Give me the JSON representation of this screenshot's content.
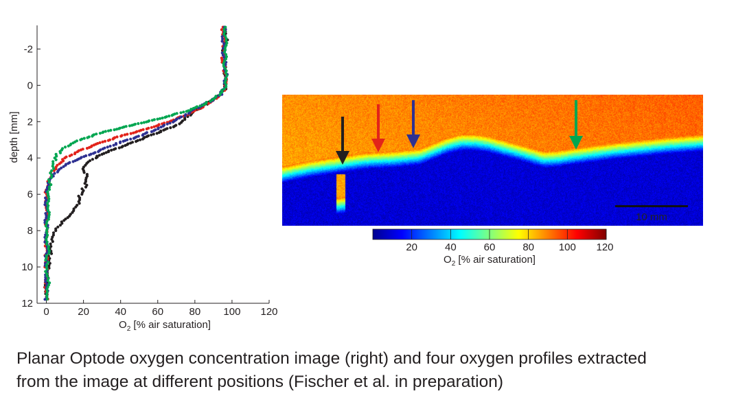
{
  "caption": {
    "line1": "Planar Optode oxygen concentration image (right) and four oxygen profiles extracted",
    "line2": "from the image at different positions (Fischer et al. in preparation)"
  },
  "chart_data": [
    {
      "type": "scatter",
      "xlabel_main": "O",
      "xlabel_sub": "2",
      "xlabel_rest": " [% air saturation]",
      "ylabel": "depth [mm]",
      "xlim": [
        -5,
        120
      ],
      "ylim": [
        -3.3,
        12
      ],
      "y_inverted": true,
      "xticks": [
        0,
        20,
        40,
        60,
        80,
        100,
        120
      ],
      "yticks": [
        -2,
        0,
        2,
        4,
        6,
        8,
        10,
        12
      ],
      "grid": false,
      "series": [
        {
          "color": "#231f20",
          "points": [
            [
              96,
              -3.2
            ],
            [
              97,
              -2.5
            ],
            [
              95,
              -1.8
            ],
            [
              96,
              -1
            ],
            [
              97,
              -0.3
            ],
            [
              96,
              0.2
            ],
            [
              94,
              0.5
            ],
            [
              90,
              0.8
            ],
            [
              85,
              1.1
            ],
            [
              80,
              1.4
            ],
            [
              75,
              1.8
            ],
            [
              70,
              2.2
            ],
            [
              60,
              2.6
            ],
            [
              50,
              3
            ],
            [
              40,
              3.4
            ],
            [
              32,
              3.7
            ],
            [
              26,
              4
            ],
            [
              22,
              4.3
            ],
            [
              20,
              4.6
            ],
            [
              22,
              5
            ],
            [
              22,
              5.3
            ],
            [
              20,
              5.7
            ],
            [
              18,
              6.1
            ],
            [
              17,
              6.5
            ],
            [
              14,
              6.9
            ],
            [
              12,
              7.2
            ],
            [
              8,
              7.6
            ],
            [
              5,
              8
            ],
            [
              3,
              8.6
            ],
            [
              2,
              9.4
            ],
            [
              1,
              10.2
            ],
            [
              0,
              11
            ],
            [
              -1,
              11.6
            ]
          ]
        },
        {
          "color": "#e2231a",
          "points": [
            [
              95,
              -3.2
            ],
            [
              96,
              -2.4
            ],
            [
              95,
              -1.5
            ],
            [
              96,
              -0.8
            ],
            [
              97,
              -0.1
            ],
            [
              95,
              0.4
            ],
            [
              90,
              0.8
            ],
            [
              84,
              1.2
            ],
            [
              76,
              1.6
            ],
            [
              66,
              2
            ],
            [
              54,
              2.4
            ],
            [
              40,
              2.8
            ],
            [
              28,
              3.2
            ],
            [
              18,
              3.6
            ],
            [
              10,
              4
            ],
            [
              6,
              4.4
            ],
            [
              3,
              4.8
            ],
            [
              1,
              5.3
            ],
            [
              0,
              6
            ],
            [
              0,
              7
            ],
            [
              0,
              8.2
            ],
            [
              0,
              9.5
            ],
            [
              0,
              11
            ],
            [
              0,
              11.9
            ]
          ]
        },
        {
          "color": "#2e3192",
          "points": [
            [
              96,
              -3.2
            ],
            [
              95,
              -2.3
            ],
            [
              96,
              -1.4
            ],
            [
              97,
              -0.6
            ],
            [
              96,
              0
            ],
            [
              94,
              0.5
            ],
            [
              88,
              0.9
            ],
            [
              80,
              1.3
            ],
            [
              72,
              1.8
            ],
            [
              62,
              2.3
            ],
            [
              50,
              2.8
            ],
            [
              38,
              3.2
            ],
            [
              26,
              3.7
            ],
            [
              16,
              4.1
            ],
            [
              10,
              4.4
            ],
            [
              6,
              4.7
            ],
            [
              3,
              5
            ],
            [
              1,
              5.5
            ],
            [
              0,
              6.2
            ],
            [
              0,
              7.3
            ],
            [
              0,
              8.5
            ],
            [
              0,
              9.8
            ],
            [
              0,
              11.2
            ],
            [
              0,
              11.9
            ]
          ]
        },
        {
          "color": "#00a651",
          "points": [
            [
              96,
              -3.2
            ],
            [
              97,
              -2.2
            ],
            [
              96,
              -1.2
            ],
            [
              97,
              -0.4
            ],
            [
              96,
              0.2
            ],
            [
              92,
              0.6
            ],
            [
              86,
              1
            ],
            [
              76,
              1.4
            ],
            [
              62,
              1.8
            ],
            [
              46,
              2.2
            ],
            [
              30,
              2.6
            ],
            [
              18,
              3
            ],
            [
              10,
              3.4
            ],
            [
              6,
              3.8
            ],
            [
              4,
              4.2
            ],
            [
              3,
              4.7
            ],
            [
              2,
              5.2
            ],
            [
              1,
              6
            ],
            [
              1,
              7
            ],
            [
              0,
              8
            ],
            [
              1,
              9
            ],
            [
              0,
              10
            ],
            [
              1,
              11
            ],
            [
              0,
              11.9
            ]
          ]
        }
      ]
    },
    {
      "type": "heatmap",
      "colorbar_label_main": "O",
      "colorbar_label_sub": "2",
      "colorbar_label_rest": " [% air saturation]",
      "colorbar_range": [
        0,
        120
      ],
      "colorbar_ticks": [
        20,
        40,
        60,
        80,
        100,
        120
      ],
      "colormap": "jet",
      "scalebar_label": "10 mm",
      "scalebar_length_mm": 10,
      "arrows": [
        {
          "color": "#231f20"
        },
        {
          "color": "#e2231a"
        },
        {
          "color": "#2e3192"
        },
        {
          "color": "#00a651"
        }
      ]
    }
  ]
}
